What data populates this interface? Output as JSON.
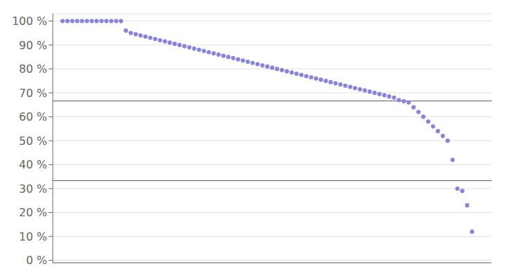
{
  "chart_data": {
    "type": "scatter",
    "x": [
      0,
      1,
      2,
      3,
      4,
      5,
      6,
      7,
      8,
      9,
      10,
      11,
      12,
      13,
      14,
      15,
      16,
      17,
      18,
      19,
      20,
      21,
      22,
      23,
      24,
      25,
      26,
      27,
      28,
      29,
      30,
      31,
      32,
      33,
      34,
      35,
      36,
      37,
      38,
      39,
      40,
      41,
      42,
      43,
      44,
      45,
      46,
      47,
      48,
      49,
      50,
      51,
      52,
      53,
      54,
      55,
      56,
      57,
      58,
      59,
      60,
      61,
      62,
      63,
      64,
      65,
      66,
      67,
      68,
      69,
      70,
      71,
      72,
      73,
      74,
      75,
      76,
      77,
      78,
      79,
      80,
      81,
      82,
      83,
      84
    ],
    "values": [
      100,
      100,
      100,
      100,
      100,
      100,
      100,
      100,
      100,
      100,
      100,
      100,
      100,
      96,
      95,
      94.5,
      94,
      93.5,
      93,
      92.5,
      92,
      91.5,
      91,
      90.5,
      90,
      89.5,
      89,
      88.5,
      88,
      87.5,
      87.0,
      86.5,
      86,
      85.5,
      85,
      84.5,
      84,
      83.5,
      83,
      82.5,
      82,
      81.5,
      81,
      80.5,
      80,
      79.5,
      79,
      78.5,
      78,
      77.5,
      77,
      76.5,
      76,
      75.5,
      75,
      74.5,
      74,
      73.5,
      73,
      72.5,
      72,
      71.5,
      71,
      70.5,
      70,
      69.5,
      69,
      68.5,
      68,
      67,
      66.5,
      66,
      64,
      62,
      60,
      58,
      56,
      54,
      52,
      50,
      42,
      30,
      29,
      23,
      12
    ],
    "xlim": [
      -2,
      88
    ],
    "ylim": [
      -1,
      103
    ],
    "yticks": [
      {
        "value": 0,
        "label": "0 %"
      },
      {
        "value": 10,
        "label": "10 %"
      },
      {
        "value": 20,
        "label": "20 %"
      },
      {
        "value": 30,
        "label": "30 %"
      },
      {
        "value": 40,
        "label": "40 %"
      },
      {
        "value": 50,
        "label": "50 %"
      },
      {
        "value": 60,
        "label": "60 %"
      },
      {
        "value": 70,
        "label": "70 %"
      },
      {
        "value": 80,
        "label": "80 %"
      },
      {
        "value": 90,
        "label": "90 %"
      },
      {
        "value": 100,
        "label": "100 %"
      }
    ],
    "reference_lines": [
      66.6,
      33.3
    ],
    "grid": true,
    "tick_labels": "y"
  }
}
